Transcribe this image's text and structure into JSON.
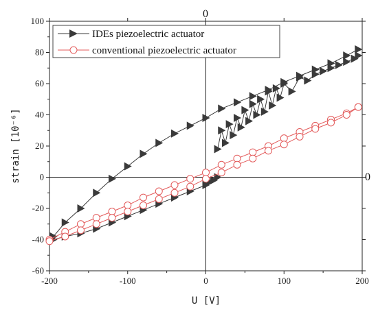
{
  "chart_data": {
    "type": "scatter",
    "xlabel": "U [V]",
    "ylabel": "strain [10⁻⁶]",
    "xlim": [
      -200,
      200
    ],
    "ylim": [
      -60,
      100
    ],
    "xticks": [
      -200,
      -100,
      0,
      100,
      200
    ],
    "yticks": [
      -60,
      -40,
      -20,
      0,
      20,
      40,
      60,
      80,
      100
    ],
    "xtick_labels": [
      "-200",
      "-100",
      "0",
      "100",
      "200"
    ],
    "ytick_labels": [
      "-60",
      "-40",
      "-20",
      "0",
      "20",
      "40",
      "60",
      "80",
      "100"
    ],
    "zero_axis_labels": {
      "vertical": "0",
      "horizontal": "0"
    },
    "legend_position": "top",
    "series": [
      {
        "name": "IDEs piezoelectric actuator",
        "marker": "triangle-right",
        "color": "#3a3a3a",
        "branches": [
          {
            "x": [
              -195,
              -180,
              -160,
              -140,
              -120,
              -100,
              -80,
              -60,
              -40,
              -20,
              0,
              20,
              40,
              60,
              80,
              100,
              120,
              140,
              160,
              180,
              195
            ],
            "y": [
              -38,
              -29,
              -20,
              -10,
              -1,
              7,
              15,
              22,
              28,
              33,
              38,
              44,
              48,
              52,
              56,
              61,
              65,
              69,
              73,
              78,
              82
            ]
          },
          {
            "x": [
              195,
              190,
              180,
              170,
              160,
              150,
              140,
              130,
              120,
              110,
              100,
              95,
              90,
              85,
              80,
              75,
              70,
              65,
              60,
              55,
              50,
              45,
              40,
              35,
              30,
              25,
              20,
              15
            ],
            "y": [
              78,
              76,
              74,
              72,
              70,
              68,
              66,
              62,
              64,
              55,
              60,
              51,
              57,
              46,
              55,
              42,
              50,
              40,
              47,
              36,
              43,
              32,
              38,
              27,
              34,
              22,
              30,
              18
            ]
          },
          {
            "x": [
              15,
              10,
              5,
              0,
              -20,
              -40,
              -60,
              -80,
              -100,
              -120,
              -140,
              -160,
              -180,
              -195
            ],
            "y": [
              0,
              -2,
              -3,
              -5,
              -9,
              -13,
              -17,
              -21,
              -25,
              -29,
              -33,
              -36,
              -38,
              -40
            ]
          }
        ]
      },
      {
        "name": "conventional piezoelectric actuator",
        "marker": "circle-open",
        "color": "#e35b5b",
        "branches": [
          {
            "x": [
              -200,
              -180,
              -160,
              -140,
              -120,
              -100,
              -80,
              -60,
              -40,
              -20,
              0,
              20,
              40,
              60,
              80,
              100,
              120,
              140,
              160,
              180,
              195
            ],
            "y": [
              -40,
              -35,
              -30,
              -26,
              -22,
              -18,
              -13,
              -9,
              -5,
              -1,
              3,
              8,
              12,
              16,
              20,
              25,
              29,
              33,
              37,
              41,
              45
            ]
          },
          {
            "x": [
              195,
              180,
              160,
              140,
              120,
              100,
              80,
              60,
              40,
              20,
              0,
              -20,
              -40,
              -60,
              -80,
              -100,
              -120,
              -140,
              -160,
              -180,
              -200
            ],
            "y": [
              45,
              40,
              35,
              31,
              26,
              21,
              17,
              12,
              8,
              3,
              -1,
              -6,
              -10,
              -14,
              -18,
              -22,
              -26,
              -30,
              -34,
              -38,
              -41
            ]
          }
        ]
      }
    ]
  }
}
